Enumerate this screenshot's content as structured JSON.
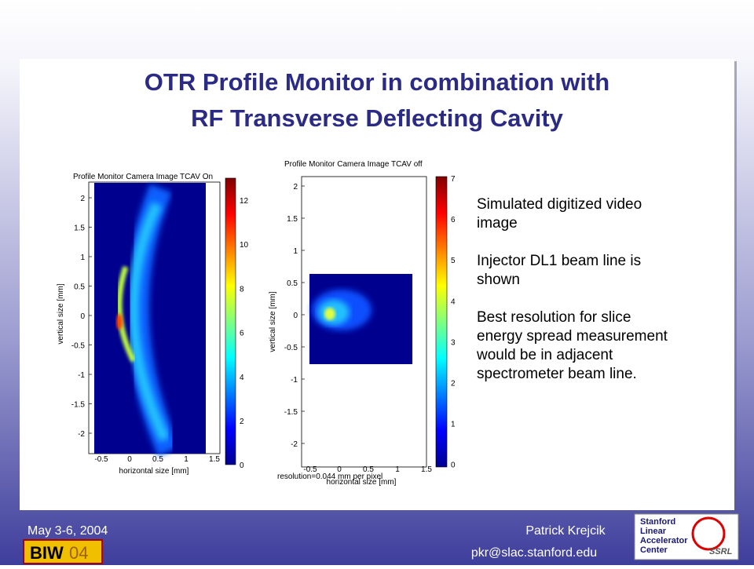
{
  "title": [
    "OTR Profile Monitor in combination with",
    "RF Transverse Deflecting Cavity"
  ],
  "plots": [
    {
      "title": "Profile Monitor Camera Image TCAV On",
      "xlabel": "horizontal size [mm]",
      "ylabel": "vertical size [mm]",
      "xticks": [
        "-0.5",
        "0",
        "0.5",
        "1",
        "1.5"
      ],
      "yticks": [
        "2",
        "1.5",
        "1",
        "0.5",
        "0",
        "-0.5",
        "-1",
        "-1.5",
        "-2"
      ],
      "colorbar_ticks": [
        "12",
        "10",
        "8",
        "6",
        "4",
        "2",
        "0"
      ]
    },
    {
      "title": "Profile Monitor Camera Image TCAV off",
      "xlabel": "horizontal size [mm]",
      "ylabel": "vertical size [mm]",
      "xticks": [
        "-0.5",
        "0",
        "0.5",
        "1",
        "1.5"
      ],
      "yticks": [
        "2",
        "1.5",
        "1",
        "0.5",
        "0",
        "-0.5",
        "-1",
        "-1.5",
        "-2"
      ],
      "colorbar_ticks": [
        "7",
        "6",
        "5",
        "4",
        "3",
        "2",
        "1",
        "0"
      ],
      "note": "resolution=0.044  mm per pixel"
    }
  ],
  "notes": [
    [
      "Simulated digitized  video",
      "image"
    ],
    [
      "Injector DL1 beam line is",
      "shown"
    ],
    [
      "Best resolution for slice",
      "energy spread measurement",
      "would be in adjacent",
      "spectrometer beam line."
    ]
  ],
  "footer": {
    "date": "May 3-6, 2004",
    "author": "Patrick Krejcik",
    "email": "pkr@slac.stanford.edu",
    "logo_left": [
      "BIW",
      "04"
    ],
    "logo_right": [
      "Stanford",
      "Linear",
      "Accelerator",
      "Center"
    ],
    "logo_ssrl": "SSRL"
  }
}
